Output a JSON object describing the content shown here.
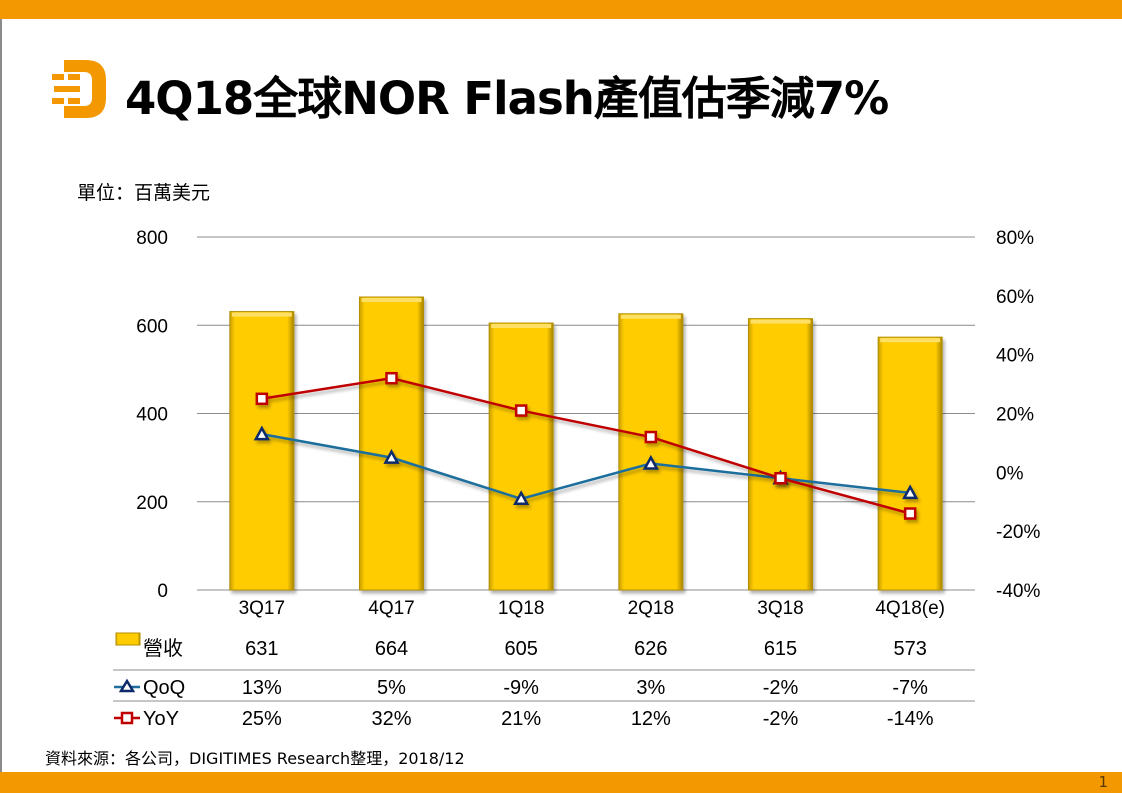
{
  "header": {
    "title": "4Q18全球NOR Flash產值估季減7%",
    "logo_icon": "digitimes-d-logo-icon"
  },
  "unit_label": "單位：百萬美元",
  "source": "資料來源：各公司，DIGITIMES Research整理，2018/12",
  "page_number": "1",
  "colors": {
    "brand_orange": "#f39800",
    "bar_fill": "#ffcc00",
    "qoq_line": "#1f6e9c",
    "qoq_marker": "#0d2a6b",
    "yoy_line": "#c00000"
  },
  "chart_data": {
    "type": "bar",
    "title": "4Q18全球NOR Flash產值估季減7%",
    "ylabel": "單位：百萬美元",
    "categories": [
      "3Q17",
      "4Q17",
      "1Q18",
      "2Q18",
      "3Q18",
      "4Q18(e)"
    ],
    "ylim": [
      0,
      800
    ],
    "y_ticks": [
      "0",
      "200",
      "400",
      "600",
      "800"
    ],
    "y2lim": [
      -40,
      80
    ],
    "y2_ticks": [
      "-40%",
      "-20%",
      "0%",
      "20%",
      "40%",
      "60%",
      "80%"
    ],
    "grid": true,
    "series": [
      {
        "name": "營收",
        "type": "bar",
        "axis": "left",
        "values": [
          631,
          664,
          605,
          626,
          615,
          573
        ],
        "labels": [
          "631",
          "664",
          "605",
          "626",
          "615",
          "573"
        ]
      },
      {
        "name": "QoQ",
        "type": "line",
        "axis": "right",
        "marker": "triangle",
        "values": [
          13,
          5,
          -9,
          3,
          -2,
          -7
        ],
        "labels": [
          "13%",
          "5%",
          "-9%",
          "3%",
          "-2%",
          "-7%"
        ]
      },
      {
        "name": "YoY",
        "type": "line",
        "axis": "right",
        "marker": "square",
        "values": [
          25,
          32,
          21,
          12,
          -2,
          -14
        ],
        "labels": [
          "25%",
          "32%",
          "21%",
          "12%",
          "-2%",
          "-14%"
        ]
      }
    ],
    "legend": "data-table-bottom"
  }
}
